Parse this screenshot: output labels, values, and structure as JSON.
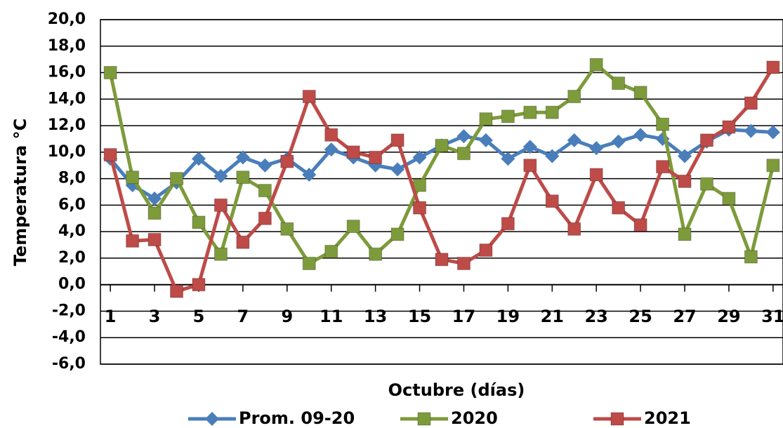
{
  "chart_data": {
    "type": "line",
    "y_label": "Temperatura °C",
    "x_label": "Octubre (días)",
    "x": [
      1,
      2,
      3,
      4,
      5,
      6,
      7,
      8,
      9,
      10,
      11,
      12,
      13,
      14,
      15,
      16,
      17,
      18,
      19,
      20,
      21,
      22,
      23,
      24,
      25,
      26,
      27,
      28,
      29,
      30,
      31
    ],
    "xlim": [
      0.55,
      31.45
    ],
    "xticks": [
      1,
      3,
      5,
      7,
      9,
      11,
      13,
      15,
      17,
      19,
      21,
      23,
      25,
      27,
      29,
      31
    ],
    "ylim": [
      -6,
      20
    ],
    "yticks": [
      {
        "value": -6,
        "label": "-6,0"
      },
      {
        "value": -4,
        "label": "-4,0"
      },
      {
        "value": -2,
        "label": "-2,0"
      },
      {
        "value": 0,
        "label": "0,0"
      },
      {
        "value": 2,
        "label": "2,0"
      },
      {
        "value": 4,
        "label": "4,0"
      },
      {
        "value": 6,
        "label": "6,0"
      },
      {
        "value": 8,
        "label": "8,0"
      },
      {
        "value": 10,
        "label": "10,0"
      },
      {
        "value": 12,
        "label": "12,0"
      },
      {
        "value": 14,
        "label": "14,0"
      },
      {
        "value": 16,
        "label": "16,0"
      },
      {
        "value": 18,
        "label": "18,0"
      },
      {
        "value": 20,
        "label": "20,0"
      }
    ],
    "grid": true,
    "legend": "bottom",
    "series": [
      {
        "name": "Prom. 09-20",
        "color": "#4a7ebb",
        "marker": "diamond",
        "values": [
          9.5,
          7.5,
          6.5,
          7.7,
          9.5,
          8.2,
          9.6,
          9.0,
          9.5,
          8.3,
          10.2,
          9.6,
          9.0,
          8.7,
          9.6,
          10.5,
          11.2,
          10.9,
          9.5,
          10.4,
          9.7,
          10.9,
          10.3,
          10.8,
          11.3,
          11.0,
          9.7,
          10.8,
          11.7,
          11.6,
          11.5
        ]
      },
      {
        "name": "2020",
        "color": "#7d9b3b",
        "marker": "square",
        "values": [
          16.0,
          8.1,
          5.4,
          8.0,
          4.7,
          2.3,
          8.1,
          7.1,
          4.2,
          1.6,
          2.5,
          4.4,
          2.3,
          3.8,
          7.5,
          10.5,
          9.9,
          12.5,
          12.7,
          13.0,
          13.0,
          14.2,
          16.6,
          15.2,
          14.5,
          12.1,
          3.8,
          7.6,
          6.5,
          2.1,
          9.0
        ]
      },
      {
        "name": "2021",
        "color": "#be4b48",
        "marker": "square",
        "values": [
          9.8,
          3.3,
          3.4,
          -0.5,
          0.0,
          6.0,
          3.2,
          5.0,
          9.3,
          14.2,
          11.3,
          10.0,
          9.6,
          10.9,
          5.8,
          1.9,
          1.6,
          2.6,
          4.6,
          9.0,
          6.3,
          4.2,
          8.3,
          5.8,
          4.5,
          8.9,
          7.8,
          10.9,
          11.9,
          13.7,
          16.4
        ]
      }
    ]
  }
}
